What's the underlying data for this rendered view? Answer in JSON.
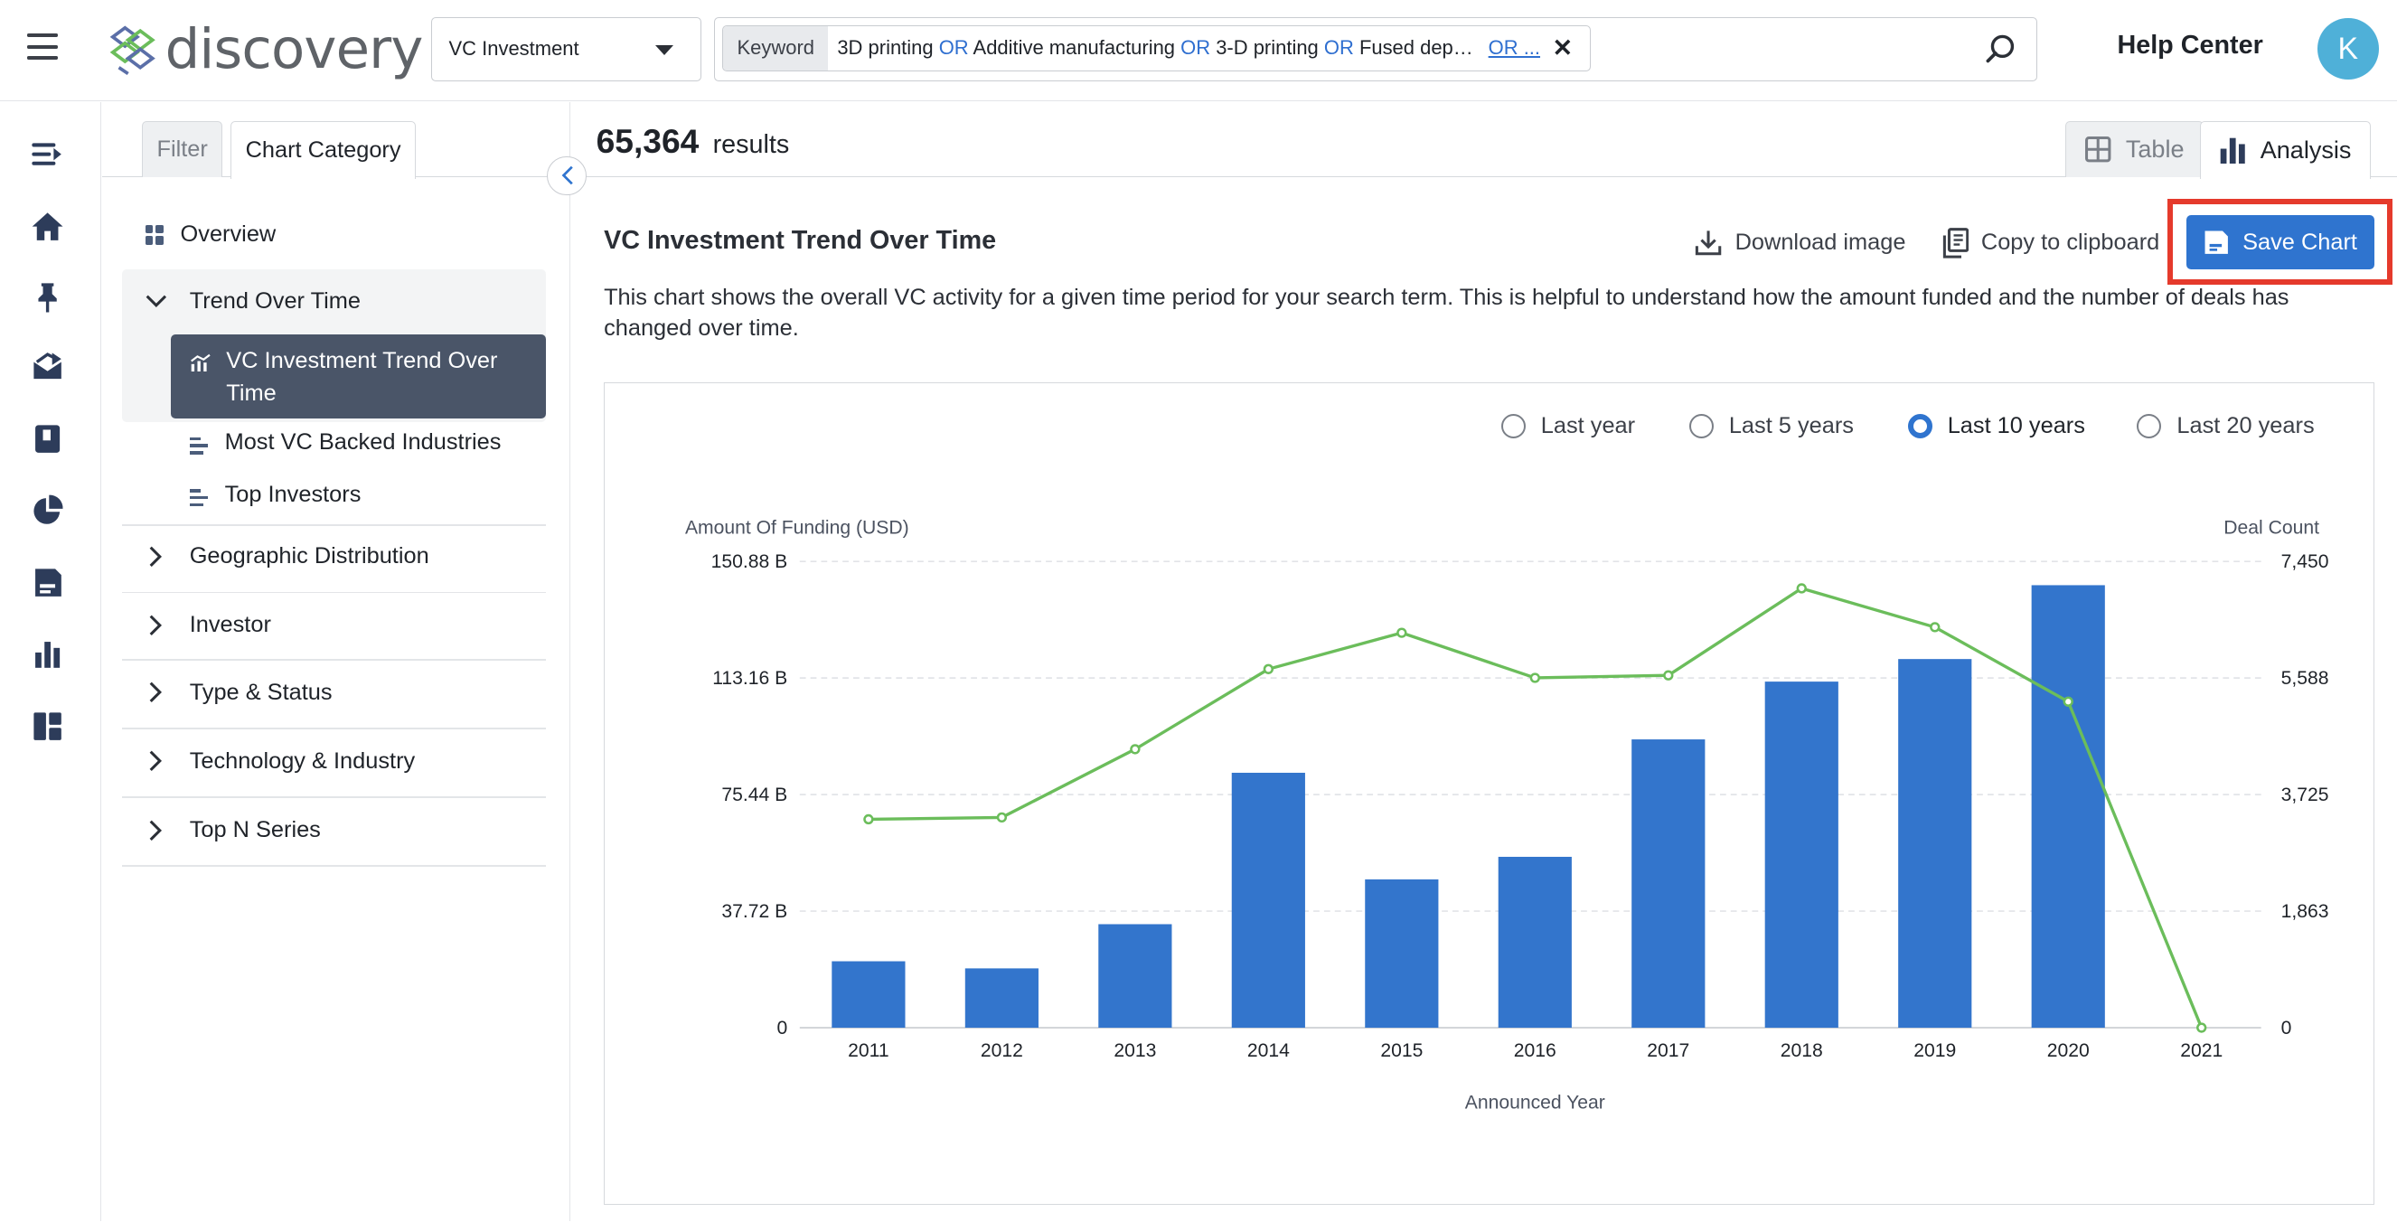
{
  "header": {
    "logo_text": "discovery",
    "dataset_select": "VC Investment",
    "query": {
      "label": "Keyword",
      "terms": [
        {
          "text": "3D printing",
          "op": false
        },
        {
          "text": " OR ",
          "op": true
        },
        {
          "text": "Additive manufacturing",
          "op": false
        },
        {
          "text": " OR ",
          "op": true
        },
        {
          "text": "3-D printing",
          "op": false
        },
        {
          "text": " OR ",
          "op": true
        },
        {
          "text": "Fused dep…",
          "op": false
        }
      ],
      "more": "OR ..."
    },
    "help_center": "Help Center",
    "avatar_initial": "K"
  },
  "rail": {
    "icons": [
      "sidebar-expand-icon",
      "home-icon",
      "pin-icon",
      "inbox-icon",
      "book-icon",
      "pie-chart-icon",
      "save-icon",
      "bar-chart-icon",
      "dashboard-icon"
    ]
  },
  "sidepanel": {
    "tabs": {
      "filter": "Filter",
      "category": "Chart Category"
    },
    "overview": "Overview",
    "groups": [
      {
        "label": "Trend Over Time",
        "expanded": true
      },
      {
        "label": "Geographic Distribution"
      },
      {
        "label": "Investor"
      },
      {
        "label": "Type & Status"
      },
      {
        "label": "Technology & Industry"
      },
      {
        "label": "Top N Series"
      }
    ],
    "trend_items": [
      {
        "label": "VC Investment Trend Over Time",
        "active": true
      },
      {
        "label": "Most VC Backed Industries"
      },
      {
        "label": "Top Investors"
      }
    ]
  },
  "main": {
    "results_count": "65,364",
    "results_label": "results",
    "view_tabs": {
      "table": "Table",
      "analysis": "Analysis"
    },
    "chart_title": "VC Investment Trend Over Time",
    "actions": {
      "download": "Download image",
      "copy": "Copy to clipboard",
      "save": "Save Chart"
    },
    "description": "This chart shows the overall VC activity for a given time period for your search term. This is helpful to understand how the amount funded and the number of deals has changed over time.",
    "periods": [
      {
        "label": "Last year",
        "checked": false
      },
      {
        "label": "Last 5 years",
        "checked": false
      },
      {
        "label": "Last 10 years",
        "checked": true
      },
      {
        "label": "Last 20 years",
        "checked": false
      }
    ]
  },
  "colors": {
    "bar": "#3375cc",
    "line": "#6bbd5b",
    "accent": "#2f74cf",
    "highlight": "#e53a2c"
  },
  "chart_data": {
    "type": "bar",
    "categories": [
      "2011",
      "2012",
      "2013",
      "2014",
      "2015",
      "2016",
      "2017",
      "2018",
      "2019",
      "2020",
      "2021"
    ],
    "series": [
      {
        "name": "Amount Of Funding (USD)",
        "type": "bar",
        "axis": "left",
        "values": [
          21.5,
          19.2,
          33.5,
          82.5,
          48.0,
          55.3,
          93.3,
          112.0,
          119.3,
          143.2,
          0
        ]
      },
      {
        "name": "Deal Count",
        "type": "line",
        "axis": "right",
        "values": [
          3330,
          3360,
          4450,
          5730,
          6310,
          5590,
          5630,
          7020,
          6400,
          5210,
          0
        ]
      }
    ],
    "xlabel": "Announced Year",
    "ylabel_left": "Amount Of Funding (USD)",
    "ylabel_right": "Deal Count",
    "ylim_left": [
      0,
      150.88
    ],
    "ylim_right": [
      0,
      7450
    ],
    "yticks_left": [
      "0",
      "37.72 B",
      "75.44 B",
      "113.16 B",
      "150.88 B"
    ],
    "yticks_right": [
      "0",
      "1,863",
      "3,725",
      "5,588",
      "7,450"
    ],
    "grid": true,
    "legend": "none"
  }
}
